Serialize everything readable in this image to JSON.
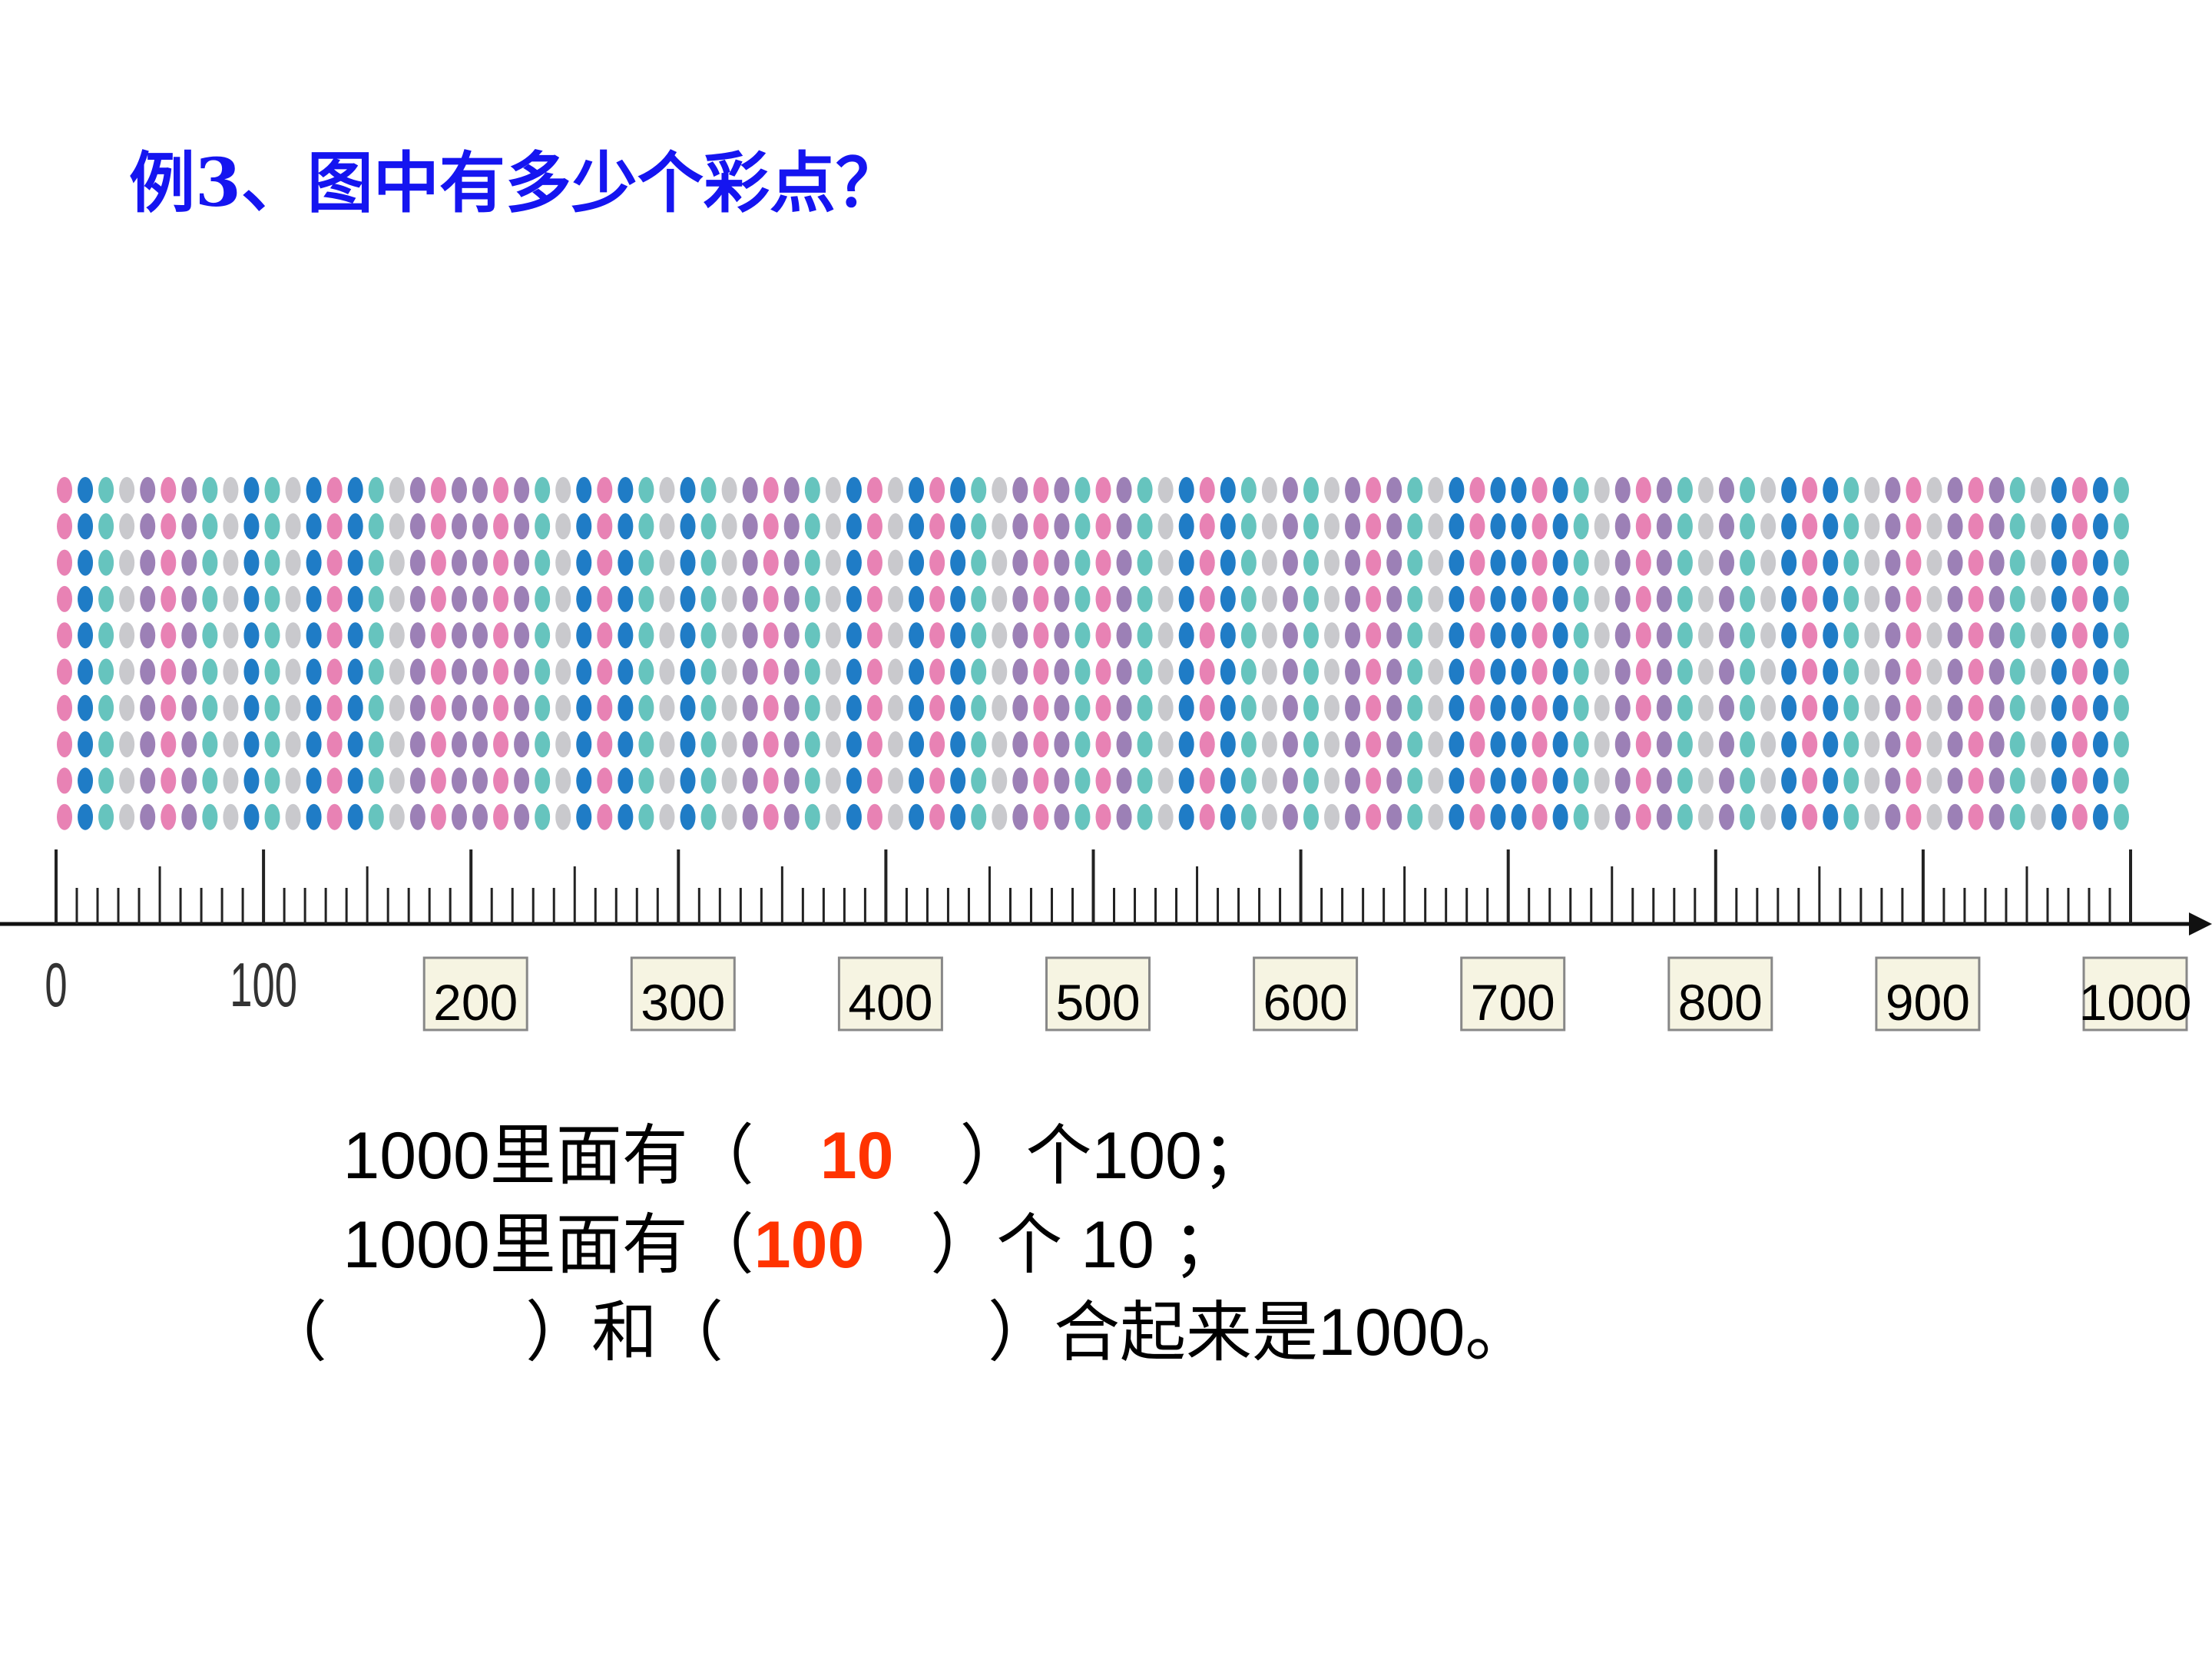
{
  "title": "例3、图中有多少个彩点？",
  "number_line": {
    "labels": [
      "0",
      "100",
      "200",
      "300",
      "400",
      "500",
      "600",
      "700",
      "800",
      "900",
      "1000"
    ]
  },
  "sentences": [
    {
      "before": "1000里面有（　",
      "answer": "10",
      "after": "　）个100；"
    },
    {
      "before": "1000里面有（",
      "answer": "100",
      "after": "　）个 10 ；"
    },
    {
      "text": "（　　　）和（　　　　）合起来是1000。"
    }
  ]
}
